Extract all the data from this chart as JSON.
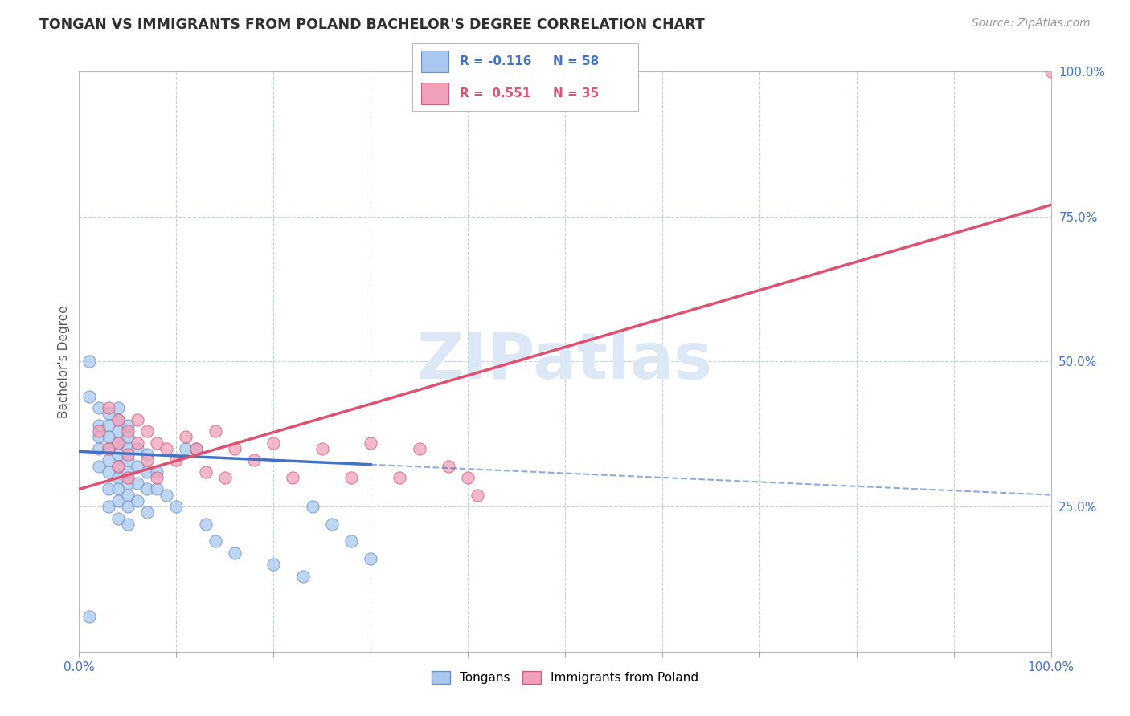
{
  "title": "TONGAN VS IMMIGRANTS FROM POLAND BACHELOR'S DEGREE CORRELATION CHART",
  "source": "Source: ZipAtlas.com",
  "ylabel": "Bachelor's Degree",
  "r_values": [
    -0.116,
    0.551
  ],
  "n_values": [
    58,
    35
  ],
  "r_color_tongan": "#4472c4",
  "r_color_poland": "#e05070",
  "scatter_color_tongan": "#a8c8f0",
  "scatter_color_poland": "#f0a0b8",
  "scatter_edge_tongan": "#7090c0",
  "scatter_edge_poland": "#d06080",
  "watermark_text": "ZIPatlas",
  "watermark_color": "#dce8f5",
  "axis_label_color": "#4472c4",
  "tick_label_color": "#4472c4",
  "title_color": "#303030",
  "background_color": "#ffffff",
  "grid_color": "#c0d0e0",
  "tongan_x": [
    0.01,
    0.01,
    0.02,
    0.02,
    0.02,
    0.02,
    0.02,
    0.03,
    0.03,
    0.03,
    0.03,
    0.03,
    0.03,
    0.03,
    0.03,
    0.04,
    0.04,
    0.04,
    0.04,
    0.04,
    0.04,
    0.04,
    0.04,
    0.04,
    0.04,
    0.05,
    0.05,
    0.05,
    0.05,
    0.05,
    0.05,
    0.05,
    0.05,
    0.05,
    0.06,
    0.06,
    0.06,
    0.06,
    0.07,
    0.07,
    0.07,
    0.07,
    0.08,
    0.08,
    0.09,
    0.1,
    0.11,
    0.12,
    0.13,
    0.14,
    0.16,
    0.2,
    0.23,
    0.24,
    0.26,
    0.28,
    0.3,
    0.01
  ],
  "tongan_y": [
    0.5,
    0.44,
    0.42,
    0.39,
    0.37,
    0.35,
    0.32,
    0.41,
    0.39,
    0.37,
    0.35,
    0.33,
    0.31,
    0.28,
    0.25,
    0.42,
    0.4,
    0.38,
    0.36,
    0.34,
    0.32,
    0.3,
    0.28,
    0.26,
    0.23,
    0.39,
    0.37,
    0.35,
    0.33,
    0.31,
    0.29,
    0.27,
    0.25,
    0.22,
    0.35,
    0.32,
    0.29,
    0.26,
    0.34,
    0.31,
    0.28,
    0.24,
    0.31,
    0.28,
    0.27,
    0.25,
    0.35,
    0.35,
    0.22,
    0.19,
    0.17,
    0.15,
    0.13,
    0.25,
    0.22,
    0.19,
    0.16,
    0.06
  ],
  "poland_x": [
    0.02,
    0.03,
    0.03,
    0.04,
    0.04,
    0.04,
    0.05,
    0.05,
    0.05,
    0.06,
    0.06,
    0.07,
    0.07,
    0.08,
    0.08,
    0.09,
    0.1,
    0.11,
    0.12,
    0.13,
    0.14,
    0.15,
    0.16,
    0.18,
    0.2,
    0.22,
    0.25,
    0.28,
    0.3,
    0.33,
    0.35,
    0.38,
    0.4,
    0.41,
    1.0
  ],
  "poland_y": [
    0.38,
    0.42,
    0.35,
    0.4,
    0.36,
    0.32,
    0.38,
    0.34,
    0.3,
    0.4,
    0.36,
    0.38,
    0.33,
    0.36,
    0.3,
    0.35,
    0.33,
    0.37,
    0.35,
    0.31,
    0.38,
    0.3,
    0.35,
    0.33,
    0.36,
    0.3,
    0.35,
    0.3,
    0.36,
    0.3,
    0.35,
    0.32,
    0.3,
    0.27,
    1.0
  ],
  "tongan_reg": [
    0.345,
    0.27
  ],
  "poland_reg": [
    0.28,
    0.77
  ],
  "xlim": [
    0.0,
    1.0
  ],
  "ylim": [
    0.0,
    1.0
  ],
  "xticks": [
    0.0,
    0.1,
    0.2,
    0.3,
    0.4,
    0.5,
    0.6,
    0.7,
    0.8,
    0.9,
    1.0
  ],
  "yticks": [
    0.0,
    0.25,
    0.5,
    0.75,
    1.0
  ],
  "ytick_labels": [
    "",
    "25.0%",
    "50.0%",
    "75.0%",
    "100.0%"
  ],
  "xtick_labels": [
    "0.0%",
    "",
    "",
    "",
    "",
    "",
    "",
    "",
    "",
    "",
    "100.0%"
  ]
}
